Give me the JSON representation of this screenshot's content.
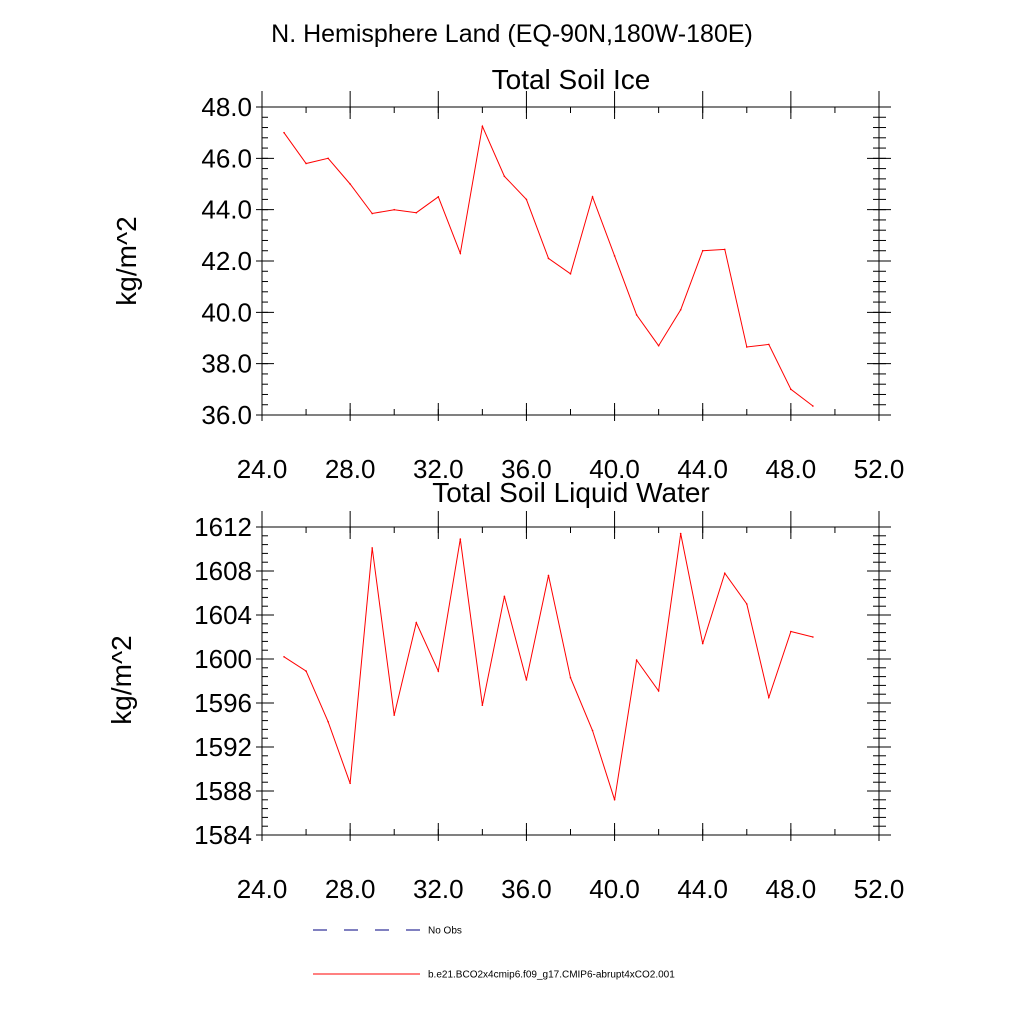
{
  "figure_title": "N. Hemisphere Land (EQ-90N,180W-180E)",
  "colors": {
    "model_line": "#ff0000",
    "obs_line": "#000080",
    "axis": "#000000",
    "background": "#ffffff"
  },
  "legend": {
    "entries": [
      {
        "label": "No Obs",
        "style": "dashed",
        "color": "#000080"
      },
      {
        "label": "b.e21.BCO2x4cmip6.f09_g17.CMIP6-abrupt4xCO2.001",
        "style": "solid",
        "color": "#ff0000"
      }
    ]
  },
  "chart_data": [
    {
      "type": "line",
      "title": "Total Soil Ice",
      "xlabel": "",
      "ylabel": "kg/m^2",
      "xlim": [
        24,
        52
      ],
      "ylim": [
        36,
        48
      ],
      "x_ticks": [
        24,
        28,
        32,
        36,
        40,
        44,
        48,
        52
      ],
      "x_tick_labels": [
        "24.0",
        "28.0",
        "32.0",
        "36.0",
        "40.0",
        "44.0",
        "48.0",
        "52.0"
      ],
      "x_minor_step": 2,
      "y_ticks": [
        36,
        38,
        40,
        42,
        44,
        46,
        48
      ],
      "y_tick_labels": [
        "36.0",
        "38.0",
        "40.0",
        "42.0",
        "44.0",
        "46.0",
        "48.0"
      ],
      "y_minor_step": 0.4,
      "grid": false,
      "series": [
        {
          "name": "b.e21.BCO2x4cmip6.f09_g17.CMIP6-abrupt4xCO2.001",
          "color": "#ff0000",
          "x": [
            25,
            26,
            27,
            28,
            29,
            30,
            31,
            32,
            33,
            34,
            35,
            36,
            37,
            38,
            39,
            40,
            41,
            42,
            43,
            44,
            45,
            46,
            47,
            48,
            49
          ],
          "y": [
            47.0,
            45.8,
            46.0,
            45.0,
            43.85,
            44.0,
            43.88,
            44.5,
            42.3,
            47.25,
            45.3,
            44.4,
            42.1,
            41.5,
            44.5,
            42.2,
            39.9,
            38.7,
            40.1,
            42.4,
            42.45,
            38.65,
            38.75,
            37.0,
            36.35
          ]
        }
      ]
    },
    {
      "type": "line",
      "title": "Total Soil Liquid Water",
      "xlabel": "",
      "ylabel": "kg/m^2",
      "xlim": [
        24,
        52
      ],
      "ylim": [
        1584,
        1612
      ],
      "x_ticks": [
        24,
        28,
        32,
        36,
        40,
        44,
        48,
        52
      ],
      "x_tick_labels": [
        "24.0",
        "28.0",
        "32.0",
        "36.0",
        "40.0",
        "44.0",
        "48.0",
        "52.0"
      ],
      "x_minor_step": 2,
      "y_ticks": [
        1584,
        1588,
        1592,
        1596,
        1600,
        1604,
        1608,
        1612
      ],
      "y_tick_labels": [
        "1584",
        "1588",
        "1592",
        "1596",
        "1600",
        "1604",
        "1608",
        "1612"
      ],
      "y_minor_step": 0.8,
      "grid": false,
      "series": [
        {
          "name": "b.e21.BCO2x4cmip6.f09_g17.CMIP6-abrupt4xCO2.001",
          "color": "#ff0000",
          "x": [
            25,
            26,
            27,
            28,
            29,
            30,
            31,
            32,
            33,
            34,
            35,
            36,
            37,
            38,
            39,
            40,
            41,
            42,
            43,
            44,
            45,
            46,
            47,
            48,
            49
          ],
          "y": [
            1600.2,
            1598.9,
            1594.3,
            1588.7,
            1610.1,
            1594.9,
            1603.3,
            1598.9,
            1610.9,
            1595.8,
            1605.7,
            1598.1,
            1607.6,
            1598.3,
            1593.5,
            1587.2,
            1599.9,
            1597.1,
            1611.4,
            1601.4,
            1607.8,
            1605.0,
            1596.5,
            1602.5,
            1602.0
          ]
        }
      ]
    }
  ]
}
